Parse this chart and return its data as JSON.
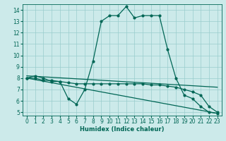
{
  "xlabel": "Humidex (Indice chaleur)",
  "bg_color": "#cceaea",
  "grid_color": "#99cccc",
  "line_color": "#006655",
  "xlim": [
    -0.5,
    23.5
  ],
  "ylim": [
    4.7,
    14.5
  ],
  "xticks": [
    0,
    1,
    2,
    3,
    4,
    5,
    6,
    7,
    8,
    9,
    10,
    11,
    12,
    13,
    14,
    15,
    16,
    17,
    18,
    19,
    20,
    21,
    22,
    23
  ],
  "yticks": [
    5,
    6,
    7,
    8,
    9,
    10,
    11,
    12,
    13,
    14
  ],
  "series1_x": [
    0,
    1,
    2,
    3,
    4,
    5,
    6,
    7,
    8,
    9,
    10,
    11,
    12,
    13,
    14,
    15,
    16,
    17,
    18,
    19,
    20,
    21,
    22,
    23
  ],
  "series1_y": [
    8.0,
    8.2,
    8.0,
    7.7,
    7.7,
    6.2,
    5.7,
    7.0,
    9.5,
    13.0,
    13.5,
    13.5,
    14.3,
    13.3,
    13.5,
    13.5,
    13.5,
    10.5,
    8.0,
    6.5,
    6.2,
    5.5,
    5.0,
    4.9
  ],
  "series2_x": [
    0,
    1,
    2,
    3,
    4,
    5,
    6,
    7,
    8,
    9,
    10,
    11,
    12,
    13,
    14,
    15,
    16,
    17,
    18,
    19,
    20,
    21,
    22,
    23
  ],
  "series2_y": [
    8.0,
    8.0,
    7.8,
    7.8,
    7.7,
    7.6,
    7.5,
    7.5,
    7.5,
    7.5,
    7.5,
    7.5,
    7.5,
    7.5,
    7.5,
    7.4,
    7.4,
    7.3,
    7.2,
    7.0,
    6.8,
    6.5,
    5.5,
    5.0
  ],
  "series3_x": [
    0,
    23
  ],
  "series3_y": [
    8.2,
    7.2
  ],
  "series4_x": [
    0,
    23
  ],
  "series4_y": [
    8.0,
    4.9
  ],
  "xlabel_fontsize": 6.0,
  "tick_fontsize": 5.5,
  "linewidth": 0.9,
  "markersize": 2.0
}
